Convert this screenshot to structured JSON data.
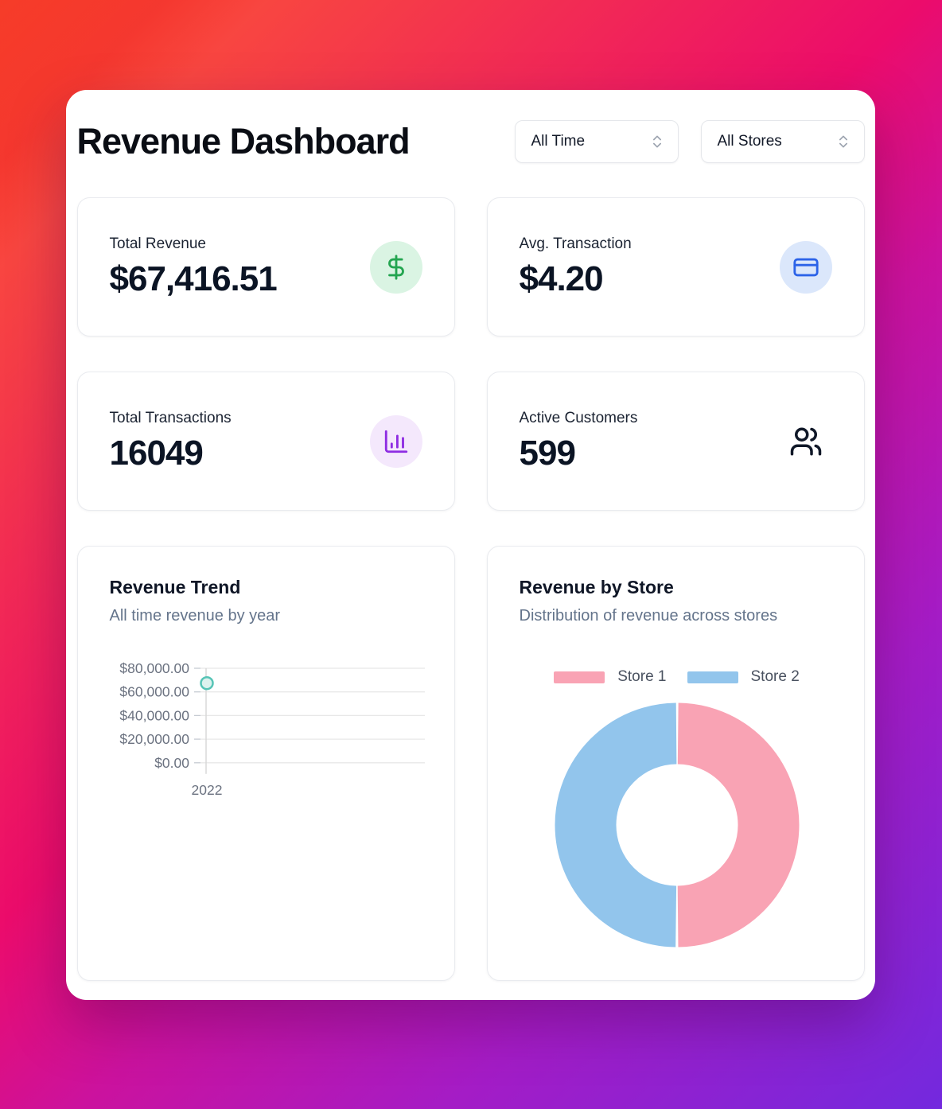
{
  "header": {
    "title": "Revenue Dashboard",
    "time_filter": {
      "value": "All Time",
      "icon": "chevrons-up-down-icon"
    },
    "store_filter": {
      "value": "All Stores",
      "icon": "chevrons-up-down-icon"
    }
  },
  "stats": [
    {
      "label": "Total Revenue",
      "value": "$67,416.51",
      "icon": "dollar-sign-icon",
      "icon_color": "#23a550",
      "icon_bg": "#daf4e3"
    },
    {
      "label": "Avg. Transaction",
      "value": "$4.20",
      "icon": "credit-card-icon",
      "icon_color": "#2c63e8",
      "icon_bg": "#dbe7fb"
    },
    {
      "label": "Total Transactions",
      "value": "16049",
      "icon": "bar-chart-icon",
      "icon_color": "#8e2ce2",
      "icon_bg": "#f4e8fc"
    },
    {
      "label": "Active Customers",
      "value": "599",
      "icon": "users-icon",
      "icon_color": "#101828",
      "icon_bg": "none"
    }
  ],
  "chart_data": [
    {
      "type": "line",
      "title": "Revenue Trend",
      "subtitle": "All time revenue by year",
      "x": [
        "2022"
      ],
      "series": [
        {
          "name": "Revenue",
          "values": [
            67416.51
          ]
        }
      ],
      "ylim": [
        0,
        80000
      ],
      "yticks": [
        {
          "value": 80000,
          "label": "$80,000.00"
        },
        {
          "value": 60000,
          "label": "$60,000.00"
        },
        {
          "value": 40000,
          "label": "$40,000.00"
        },
        {
          "value": 20000,
          "label": "$20,000.00"
        },
        {
          "value": 0,
          "label": "$0.00"
        }
      ],
      "grid": true,
      "marker_color": "#57c4b6",
      "axis_text_color": "#6b7280",
      "gridline_color": "#e8e8e8"
    },
    {
      "type": "pie",
      "donut": true,
      "title": "Revenue by Store",
      "subtitle": "Distribution of revenue across stores",
      "labels": [
        "Store 1",
        "Store 2"
      ],
      "values": [
        50,
        50
      ],
      "colors": [
        "#f9a3b4",
        "#92c5ec"
      ],
      "legend_position": "top"
    }
  ],
  "colors": {
    "background_gradient": [
      "#fe5b31",
      "#ec0c6b",
      "#cb129e",
      "#7329de"
    ],
    "card_bg": "#ffffff",
    "card_border": "#e9ebef",
    "title_text": "#0a0d14",
    "subtitle_text": "#64748b"
  }
}
